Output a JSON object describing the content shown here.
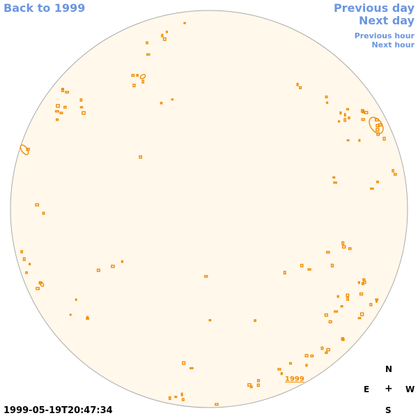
{
  "nav": {
    "back": "Back to 1999",
    "previous_day": "Previous day",
    "next_day": "Next day",
    "previous_hour": "Previous hour",
    "next_hour": "Next hour"
  },
  "image": {
    "timestamp": "1999-05-19T20:47:34",
    "year_label": "1999",
    "disk_fill": "#fff8eb",
    "disk_stroke": "#aaaaaa",
    "contour_color": "#f08c00"
  },
  "compass": {
    "north": "N",
    "east": "E",
    "center": "+",
    "west": "W",
    "south": "S"
  }
}
